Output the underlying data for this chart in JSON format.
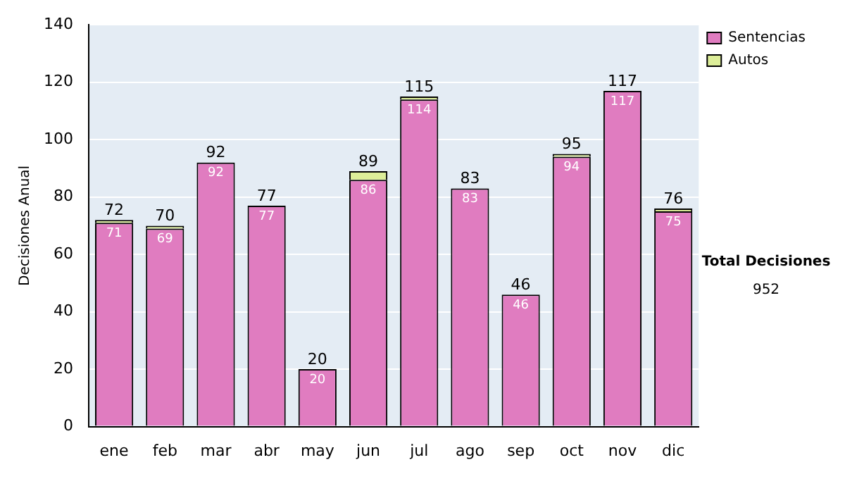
{
  "chart_data": {
    "type": "bar",
    "stacked": true,
    "ylabel": "Decisiones Anual",
    "categories": [
      "ene",
      "feb",
      "mar",
      "abr",
      "may",
      "jun",
      "jul",
      "ago",
      "sep",
      "oct",
      "nov",
      "dic"
    ],
    "series": [
      {
        "name": "Sentencias",
        "color": "#e07cc0",
        "values": [
          71,
          69,
          92,
          77,
          20,
          86,
          114,
          83,
          46,
          94,
          117,
          75
        ],
        "value_labels": [
          "71",
          "69",
          "92",
          "77",
          "20",
          "86",
          "114",
          "83",
          "46",
          "94",
          "117",
          "75"
        ]
      },
      {
        "name": "Autos",
        "color": "#ddee99",
        "values": [
          1,
          1,
          0,
          0,
          0,
          3,
          1,
          0,
          0,
          1,
          0,
          1
        ]
      }
    ],
    "totals": [
      "72",
      "70",
      "92",
      "77",
      "20",
      "89",
      "115",
      "83",
      "46",
      "95",
      "117",
      "76"
    ],
    "ylim": [
      0,
      140
    ],
    "yticks": [
      0,
      20,
      40,
      60,
      80,
      100,
      120,
      140
    ],
    "grid": "y",
    "legend": "right",
    "annotations": [
      "Total Decisiones",
      "952"
    ]
  }
}
